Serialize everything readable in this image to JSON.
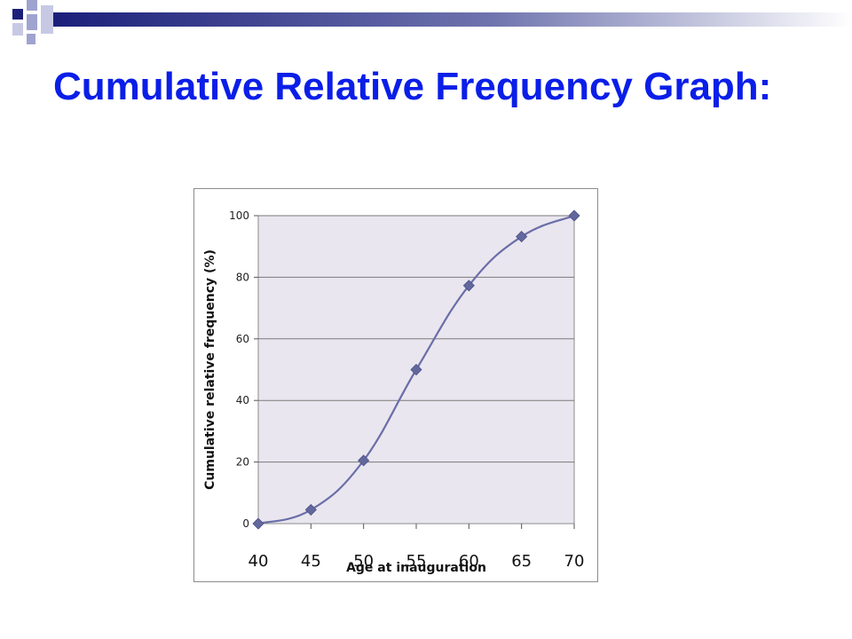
{
  "slide": {
    "title": "Cumulative Relative Frequency Graph:"
  },
  "colors": {
    "title": "#0b1ee8",
    "plot_background": "#e9e6ef",
    "series_line": "#6b6ea8",
    "series_marker": "#62679c",
    "gridline": "#7a7a7a",
    "decor_navy": "#1b1f7a",
    "decor_light": "#9fa3cf"
  },
  "chart_data": {
    "type": "line",
    "title": "",
    "xlabel": "Age at inauguration",
    "ylabel": "Cumulative relative frequency (%)",
    "x": [
      40,
      45,
      50,
      55,
      60,
      65,
      70
    ],
    "x_tick_labels": [
      "40",
      "45",
      "50",
      "55",
      "60",
      "65",
      "70"
    ],
    "y_ticks": [
      0,
      20,
      40,
      60,
      80,
      100
    ],
    "y_tick_labels": [
      "0",
      "20",
      "40",
      "60",
      "80",
      "100"
    ],
    "xlim": [
      40,
      70
    ],
    "ylim": [
      0,
      100
    ],
    "grid": "horizontal",
    "series": [
      {
        "values": [
          0,
          4.5,
          20.5,
          50,
          77.3,
          93.2,
          100
        ]
      }
    ]
  }
}
